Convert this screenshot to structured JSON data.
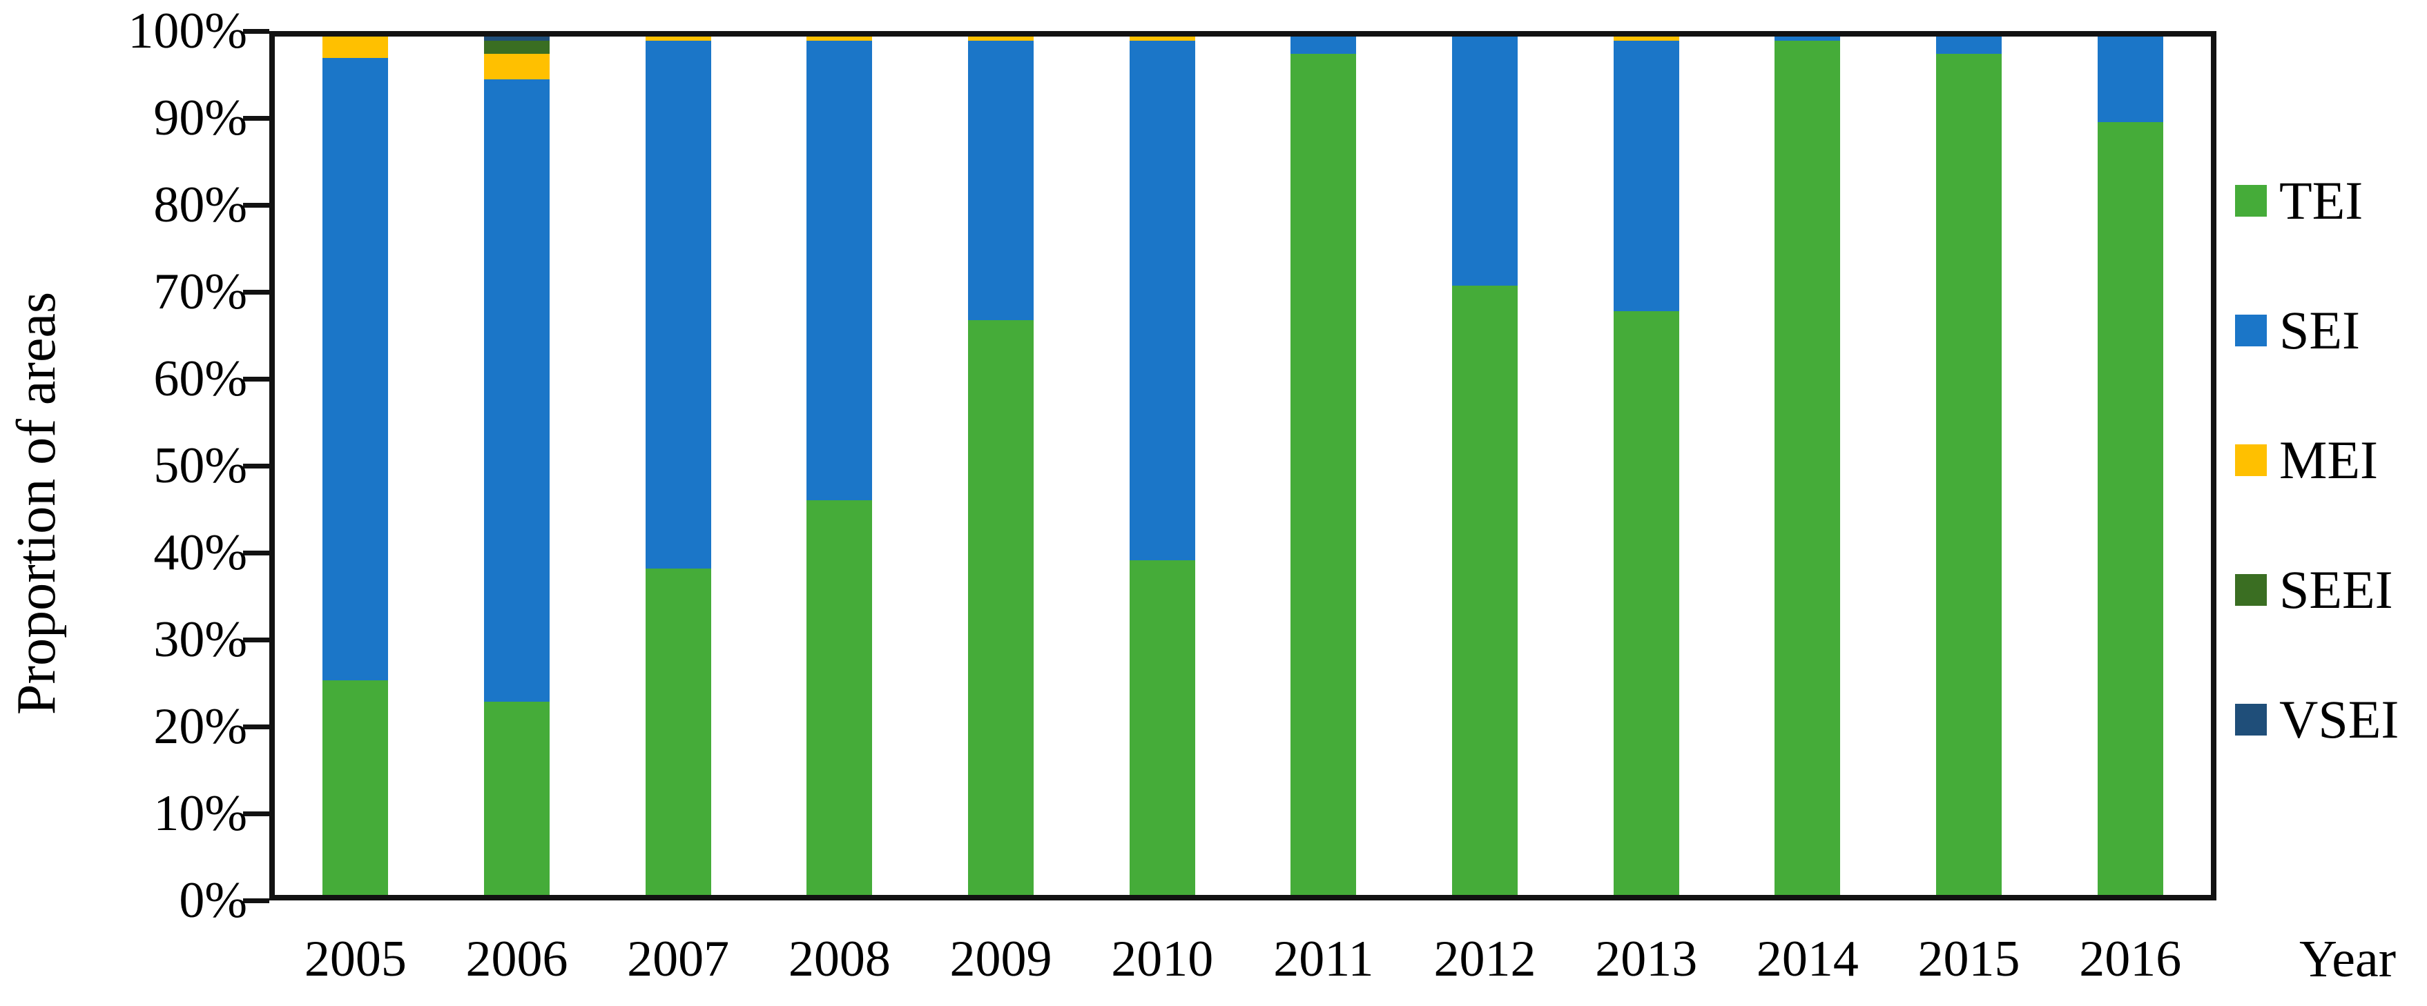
{
  "chart_data": {
    "type": "bar",
    "stacked": true,
    "percent_stacked": true,
    "title": "",
    "categories": [
      "2005",
      "2006",
      "2007",
      "2008",
      "2009",
      "2010",
      "2011",
      "2012",
      "2013",
      "2014",
      "2015",
      "2016"
    ],
    "series": [
      {
        "name": "TEI",
        "values": [
          25,
          22.5,
          38,
          46,
          67,
          39,
          98,
          71,
          68,
          99.5,
          98,
          90
        ]
      },
      {
        "name": "SEI",
        "values": [
          72.5,
          72.5,
          61.5,
          53.5,
          32.5,
          60.5,
          2,
          29,
          31.5,
          0.5,
          2,
          10
        ]
      },
      {
        "name": "MEI",
        "values": [
          2.5,
          3,
          0.5,
          0.5,
          0.5,
          0.5,
          0,
          0,
          0.5,
          0,
          0,
          0
        ]
      },
      {
        "name": "SEEI",
        "values": [
          0,
          1.5,
          0,
          0,
          0,
          0,
          0,
          0,
          0,
          0,
          0,
          0
        ]
      },
      {
        "name": "VSEI",
        "values": [
          0,
          0.5,
          0,
          0,
          0,
          0,
          0,
          0,
          0,
          0,
          0,
          0
        ]
      }
    ],
    "colors": {
      "TEI": "#45AC39",
      "SEI": "#1B76C8",
      "MEI": "#FFC000",
      "SEEI": "#3A6E22",
      "VSEI": "#1F4E79"
    },
    "xlabel": "Year",
    "ylabel": "Proportion of areas",
    "ylim": [
      0,
      100
    ],
    "y_ticks": [
      {
        "label": "0%",
        "value": 0
      },
      {
        "label": "10%",
        "value": 10
      },
      {
        "label": "20%",
        "value": 20
      },
      {
        "label": "30%",
        "value": 30
      },
      {
        "label": "40%",
        "value": 40
      },
      {
        "label": "50%",
        "value": 50
      },
      {
        "label": "60%",
        "value": 60
      },
      {
        "label": "70%",
        "value": 70
      },
      {
        "label": "80%",
        "value": 80
      },
      {
        "label": "90%",
        "value": 90
      },
      {
        "label": "100%",
        "value": 100
      }
    ],
    "legend": [
      "TEI",
      "SEI",
      "MEI",
      "SEEI",
      "VSEI"
    ],
    "legend_position": "right",
    "grid": false
  }
}
